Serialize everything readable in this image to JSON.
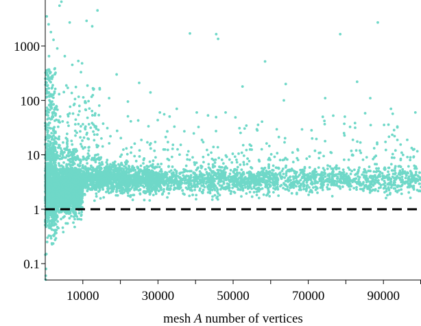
{
  "chart_data": {
    "type": "scatter",
    "title": "",
    "xlabel_parts": [
      "mesh ",
      "A",
      " number of vertices"
    ],
    "ylabel": "",
    "y_scale": "log",
    "xlim": [
      0,
      100000
    ],
    "ylim": [
      0.05,
      7000
    ],
    "x_ticks": [
      10000,
      30000,
      50000,
      70000,
      90000
    ],
    "x_tick_labels": [
      "10000",
      "30000",
      "50000",
      "70000",
      "90000"
    ],
    "x_minor_ticks": [
      20000,
      40000,
      60000,
      80000,
      100000
    ],
    "y_ticks": [
      0.1,
      1,
      10,
      100,
      1000
    ],
    "y_tick_labels": [
      "0.1",
      "1",
      "10",
      "100",
      "1000"
    ],
    "reference_line": {
      "y": 1,
      "style": "dashed",
      "color": "#000000"
    },
    "grid": false,
    "legend": "none",
    "series": [
      {
        "color": "#6fd8c8",
        "marker": "circle",
        "values": [
          [
            400,
            3500
          ],
          [
            900,
            2500
          ],
          [
            1500,
            1800
          ],
          [
            2200,
            1300
          ],
          [
            3800,
            5500
          ],
          [
            4300,
            6500
          ],
          [
            6500,
            2700
          ],
          [
            11000,
            2900
          ],
          [
            12500,
            2300
          ],
          [
            13900,
            4500
          ],
          [
            8800,
            530
          ],
          [
            9800,
            480
          ],
          [
            7200,
            450
          ],
          [
            5200,
            650
          ],
          [
            3200,
            900
          ],
          [
            14500,
            160
          ],
          [
            17000,
            110
          ],
          [
            22000,
            95
          ],
          [
            28000,
            140
          ],
          [
            30500,
            60
          ],
          [
            38500,
            1700
          ],
          [
            46000,
            1350
          ],
          [
            45500,
            1650
          ],
          [
            52500,
            180
          ],
          [
            58500,
            520
          ],
          [
            64000,
            200
          ],
          [
            63500,
            100
          ],
          [
            74500,
            110
          ],
          [
            78500,
            1650
          ],
          [
            83000,
            220
          ],
          [
            88500,
            2700
          ],
          [
            86500,
            110
          ],
          [
            98500,
            60
          ],
          [
            92000,
            70
          ],
          [
            35000,
            70
          ],
          [
            48000,
            60
          ],
          [
            25000,
            210
          ],
          [
            19000,
            300
          ],
          [
            9500,
            330
          ],
          [
            6000,
            170
          ],
          [
            2000,
            190
          ],
          [
            1000,
            650
          ],
          [
            3500,
            0.45
          ],
          [
            4800,
            0.38
          ],
          [
            1200,
            0.6
          ],
          [
            800,
            0.5
          ],
          [
            500,
            0.25
          ],
          [
            300,
            0.15
          ],
          [
            200,
            0.08
          ],
          [
            150,
            0.06
          ],
          [
            600,
            0.3
          ],
          [
            100,
            0.05
          ],
          [
            5500,
            0.55
          ]
        ],
        "dense_bands": [
          {
            "x_range": [
              0,
              3000
            ],
            "y_median": 2.0,
            "y_spread": 4.5,
            "count": 900
          },
          {
            "x_range": [
              3000,
              10000
            ],
            "y_median": 2.3,
            "y_spread": 2.6,
            "count": 1600
          },
          {
            "x_range": [
              10000,
              30000
            ],
            "y_median": 3.6,
            "y_spread": 1.8,
            "count": 1300
          },
          {
            "x_range": [
              30000,
              60000
            ],
            "y_median": 3.4,
            "y_spread": 1.8,
            "count": 900
          },
          {
            "x_range": [
              60000,
              100000
            ],
            "y_median": 3.5,
            "y_spread": 1.7,
            "count": 800
          }
        ],
        "sparse_bands": [
          {
            "x_range": [
              0,
              3000
            ],
            "y_range": [
              8,
              400
            ],
            "count": 260
          },
          {
            "x_range": [
              3000,
              15000
            ],
            "y_range": [
              8,
              200
            ],
            "count": 200
          },
          {
            "x_range": [
              15000,
              100000
            ],
            "y_range": [
              8,
              60
            ],
            "count": 200
          }
        ]
      }
    ]
  }
}
